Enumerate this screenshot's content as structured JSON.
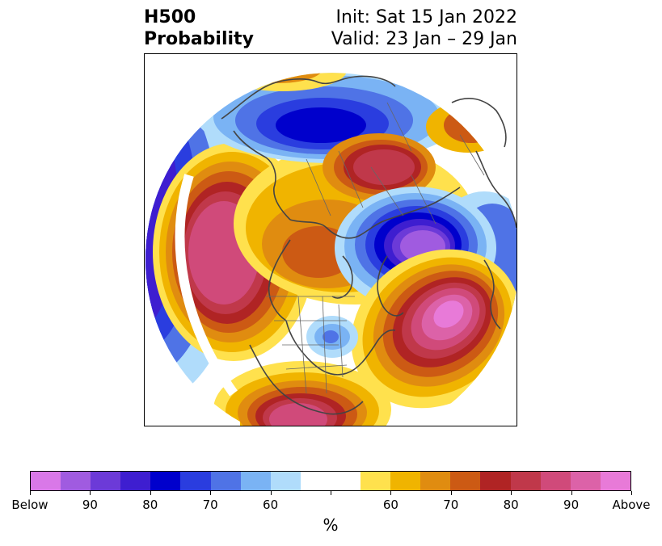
{
  "title": {
    "main_line1": "H500",
    "main_line2": "Probability",
    "init": "Init: Sat 15 Jan 2022",
    "valid": "Valid: 23 Jan – 29 Jan"
  },
  "colorbar": {
    "label": "%",
    "colors": [
      "#d978e8",
      "#a05be0",
      "#6c3ad8",
      "#3e1ed0",
      "#0000cc",
      "#2a3ddf",
      "#4f73e6",
      "#7ab3f4",
      "#b0dcfb",
      "#ffffff",
      "#ffffff",
      "#ffe14d",
      "#f0b400",
      "#e08c10",
      "#cc5a14",
      "#b02424",
      "#c0384a",
      "#d04a7a",
      "#dc62a8",
      "#e87ad8"
    ],
    "ticks": [
      {
        "label": "Below"
      },
      {
        "label": "90"
      },
      {
        "label": "80"
      },
      {
        "label": "70"
      },
      {
        "label": "60"
      },
      {
        "label": ""
      },
      {
        "label": "60"
      },
      {
        "label": "70"
      },
      {
        "label": "80"
      },
      {
        "label": "90"
      },
      {
        "label": "Above"
      }
    ]
  },
  "map": {
    "projection": "north-polar-stereographic",
    "variable": "500 hPa height anomaly probability"
  }
}
